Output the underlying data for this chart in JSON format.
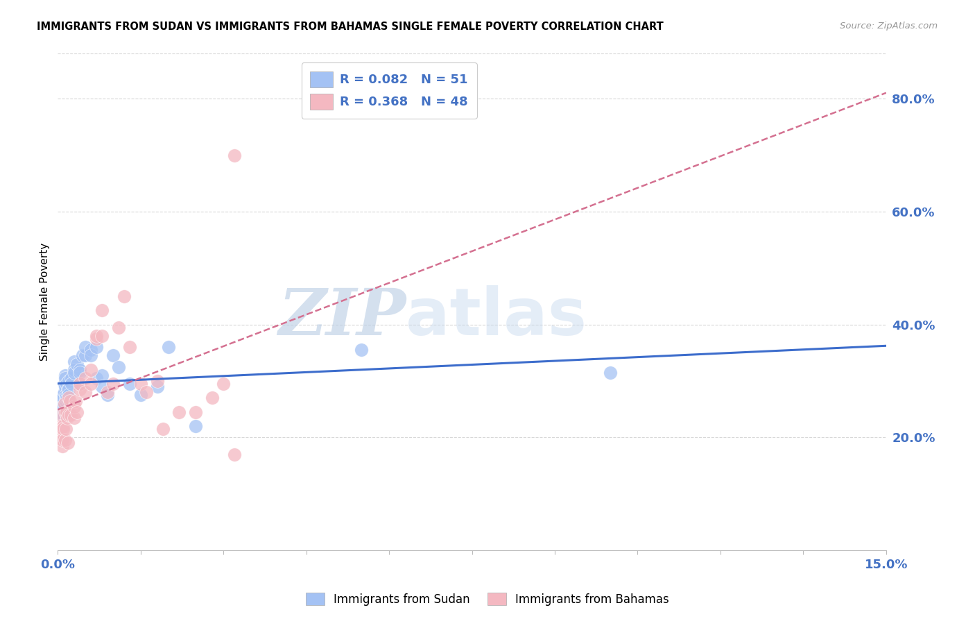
{
  "title": "IMMIGRANTS FROM SUDAN VS IMMIGRANTS FROM BAHAMAS SINGLE FEMALE POVERTY CORRELATION CHART",
  "source": "Source: ZipAtlas.com",
  "ylabel": "Single Female Poverty",
  "ylabel_right_ticks": [
    "20.0%",
    "40.0%",
    "60.0%",
    "80.0%"
  ],
  "ylabel_right_vals": [
    0.2,
    0.4,
    0.6,
    0.8
  ],
  "color_sudan": "#a4c2f4",
  "color_bahamas": "#f4b8c1",
  "color_sudan_line": "#3d6dcc",
  "color_bahamas_line": "#d47090",
  "color_text_blue": "#4472c4",
  "xlim": [
    0.0,
    0.15
  ],
  "ylim": [
    0.0,
    0.88
  ],
  "sudan_x": [
    0.0005,
    0.0005,
    0.0007,
    0.0007,
    0.0008,
    0.0009,
    0.001,
    0.001,
    0.0012,
    0.0012,
    0.0013,
    0.0013,
    0.0014,
    0.0015,
    0.0015,
    0.0015,
    0.0016,
    0.0017,
    0.0018,
    0.002,
    0.002,
    0.002,
    0.002,
    0.0025,
    0.0025,
    0.003,
    0.003,
    0.003,
    0.0035,
    0.004,
    0.004,
    0.004,
    0.0045,
    0.005,
    0.005,
    0.006,
    0.006,
    0.007,
    0.007,
    0.008,
    0.008,
    0.009,
    0.01,
    0.011,
    0.013,
    0.015,
    0.018,
    0.02,
    0.025,
    0.055,
    0.1
  ],
  "sudan_y": [
    0.265,
    0.26,
    0.27,
    0.245,
    0.255,
    0.24,
    0.275,
    0.27,
    0.295,
    0.28,
    0.29,
    0.31,
    0.305,
    0.275,
    0.265,
    0.27,
    0.295,
    0.27,
    0.285,
    0.3,
    0.285,
    0.275,
    0.265,
    0.305,
    0.295,
    0.335,
    0.32,
    0.315,
    0.33,
    0.295,
    0.32,
    0.315,
    0.345,
    0.345,
    0.36,
    0.355,
    0.345,
    0.36,
    0.305,
    0.31,
    0.29,
    0.275,
    0.345,
    0.325,
    0.295,
    0.275,
    0.29,
    0.36,
    0.22,
    0.355,
    0.315
  ],
  "bahamas_x": [
    0.0005,
    0.0005,
    0.0006,
    0.0007,
    0.0008,
    0.0009,
    0.001,
    0.001,
    0.0012,
    0.0013,
    0.0014,
    0.0015,
    0.0016,
    0.0017,
    0.0018,
    0.002,
    0.002,
    0.0022,
    0.0024,
    0.003,
    0.003,
    0.0032,
    0.0035,
    0.004,
    0.004,
    0.005,
    0.005,
    0.006,
    0.006,
    0.007,
    0.007,
    0.008,
    0.008,
    0.009,
    0.01,
    0.011,
    0.012,
    0.013,
    0.015,
    0.016,
    0.018,
    0.019,
    0.022,
    0.025,
    0.028,
    0.03,
    0.032,
    0.032
  ],
  "bahamas_y": [
    0.24,
    0.22,
    0.215,
    0.2,
    0.185,
    0.195,
    0.22,
    0.215,
    0.26,
    0.245,
    0.195,
    0.215,
    0.245,
    0.235,
    0.19,
    0.27,
    0.24,
    0.265,
    0.24,
    0.235,
    0.255,
    0.265,
    0.245,
    0.285,
    0.295,
    0.28,
    0.305,
    0.32,
    0.295,
    0.375,
    0.38,
    0.38,
    0.425,
    0.28,
    0.295,
    0.395,
    0.45,
    0.36,
    0.295,
    0.28,
    0.3,
    0.215,
    0.245,
    0.245,
    0.27,
    0.295,
    0.7,
    0.17
  ],
  "watermark_zip": "ZIP",
  "watermark_atlas": "atlas",
  "background_color": "#ffffff",
  "grid_color": "#d8d8d8"
}
